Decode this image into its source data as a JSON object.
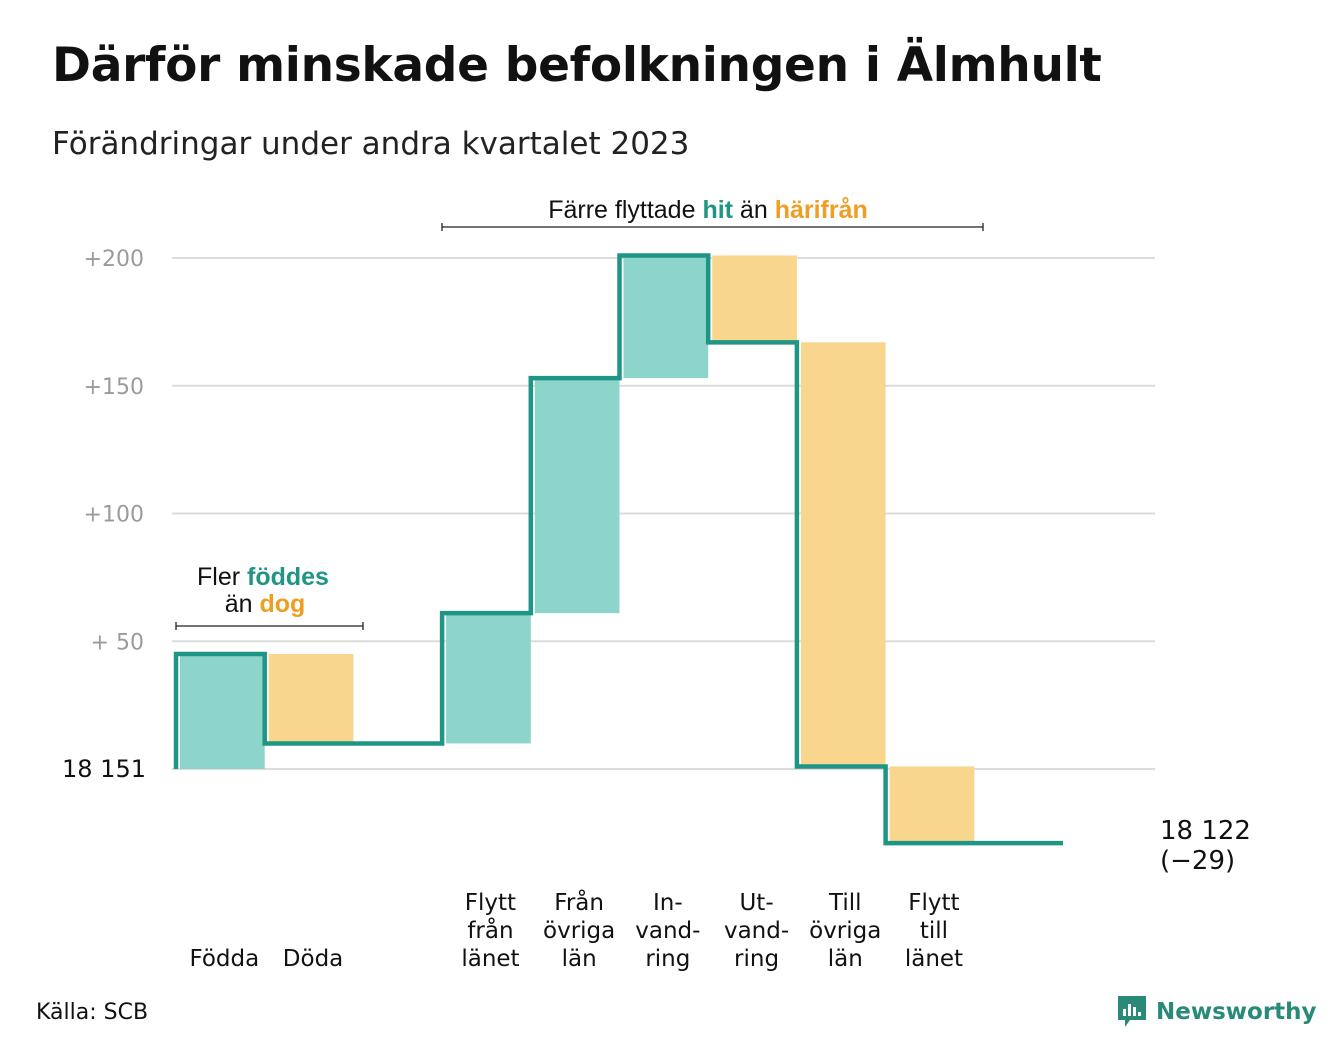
{
  "title": "Därför minskade befolkningen i Älmhult",
  "subtitle": "Förändringar under andra kvartalet 2023",
  "source": "Källa: SCB",
  "brand": "Newsworthy",
  "colors": {
    "inflow": "#8dd4cb",
    "outflow": "#f9d68e",
    "line": "#1f9585",
    "grid": "#dcdcdc",
    "hit": "#1f9585",
    "harifran": "#ee9e23"
  },
  "annotations": {
    "births": {
      "l1a": "Fler ",
      "l1b": "föddes",
      "l2a": "än ",
      "l2b": "dog"
    },
    "moves": {
      "a": "Färre flyttade ",
      "b": "hit",
      "c": " än ",
      "d": "härifrån"
    }
  },
  "chart_data": {
    "type": "waterfall",
    "start_label": "18  151",
    "end_label": [
      "18 122",
      "(−29)"
    ],
    "start": 0,
    "end": -29,
    "ylim": [
      -30,
      210
    ],
    "yticks": [
      {
        "value": 200,
        "label": "+200"
      },
      {
        "value": 150,
        "label": "+150"
      },
      {
        "value": 100,
        "label": "+100"
      },
      {
        "value": 50,
        "label": "+  50"
      }
    ],
    "steps": [
      {
        "label": [
          "Födda"
        ],
        "change": 45
      },
      {
        "label": [
          "Döda"
        ],
        "change": -35
      },
      {
        "label": [],
        "change": 0
      },
      {
        "label": [
          "Flytt",
          "från",
          "länet"
        ],
        "change": 51
      },
      {
        "label": [
          "Från",
          "övriga",
          "län"
        ],
        "change": 92
      },
      {
        "label": [
          "In-",
          "vand-",
          "ring"
        ],
        "change": 48
      },
      {
        "label": [
          "Ut-",
          "vand-",
          "ring"
        ],
        "change": -34
      },
      {
        "label": [
          "Till",
          "övriga",
          "län"
        ],
        "change": -166
      },
      {
        "label": [
          "Flytt",
          "till",
          "länet"
        ],
        "change": -30
      },
      {
        "label": [],
        "change": 0
      }
    ]
  }
}
